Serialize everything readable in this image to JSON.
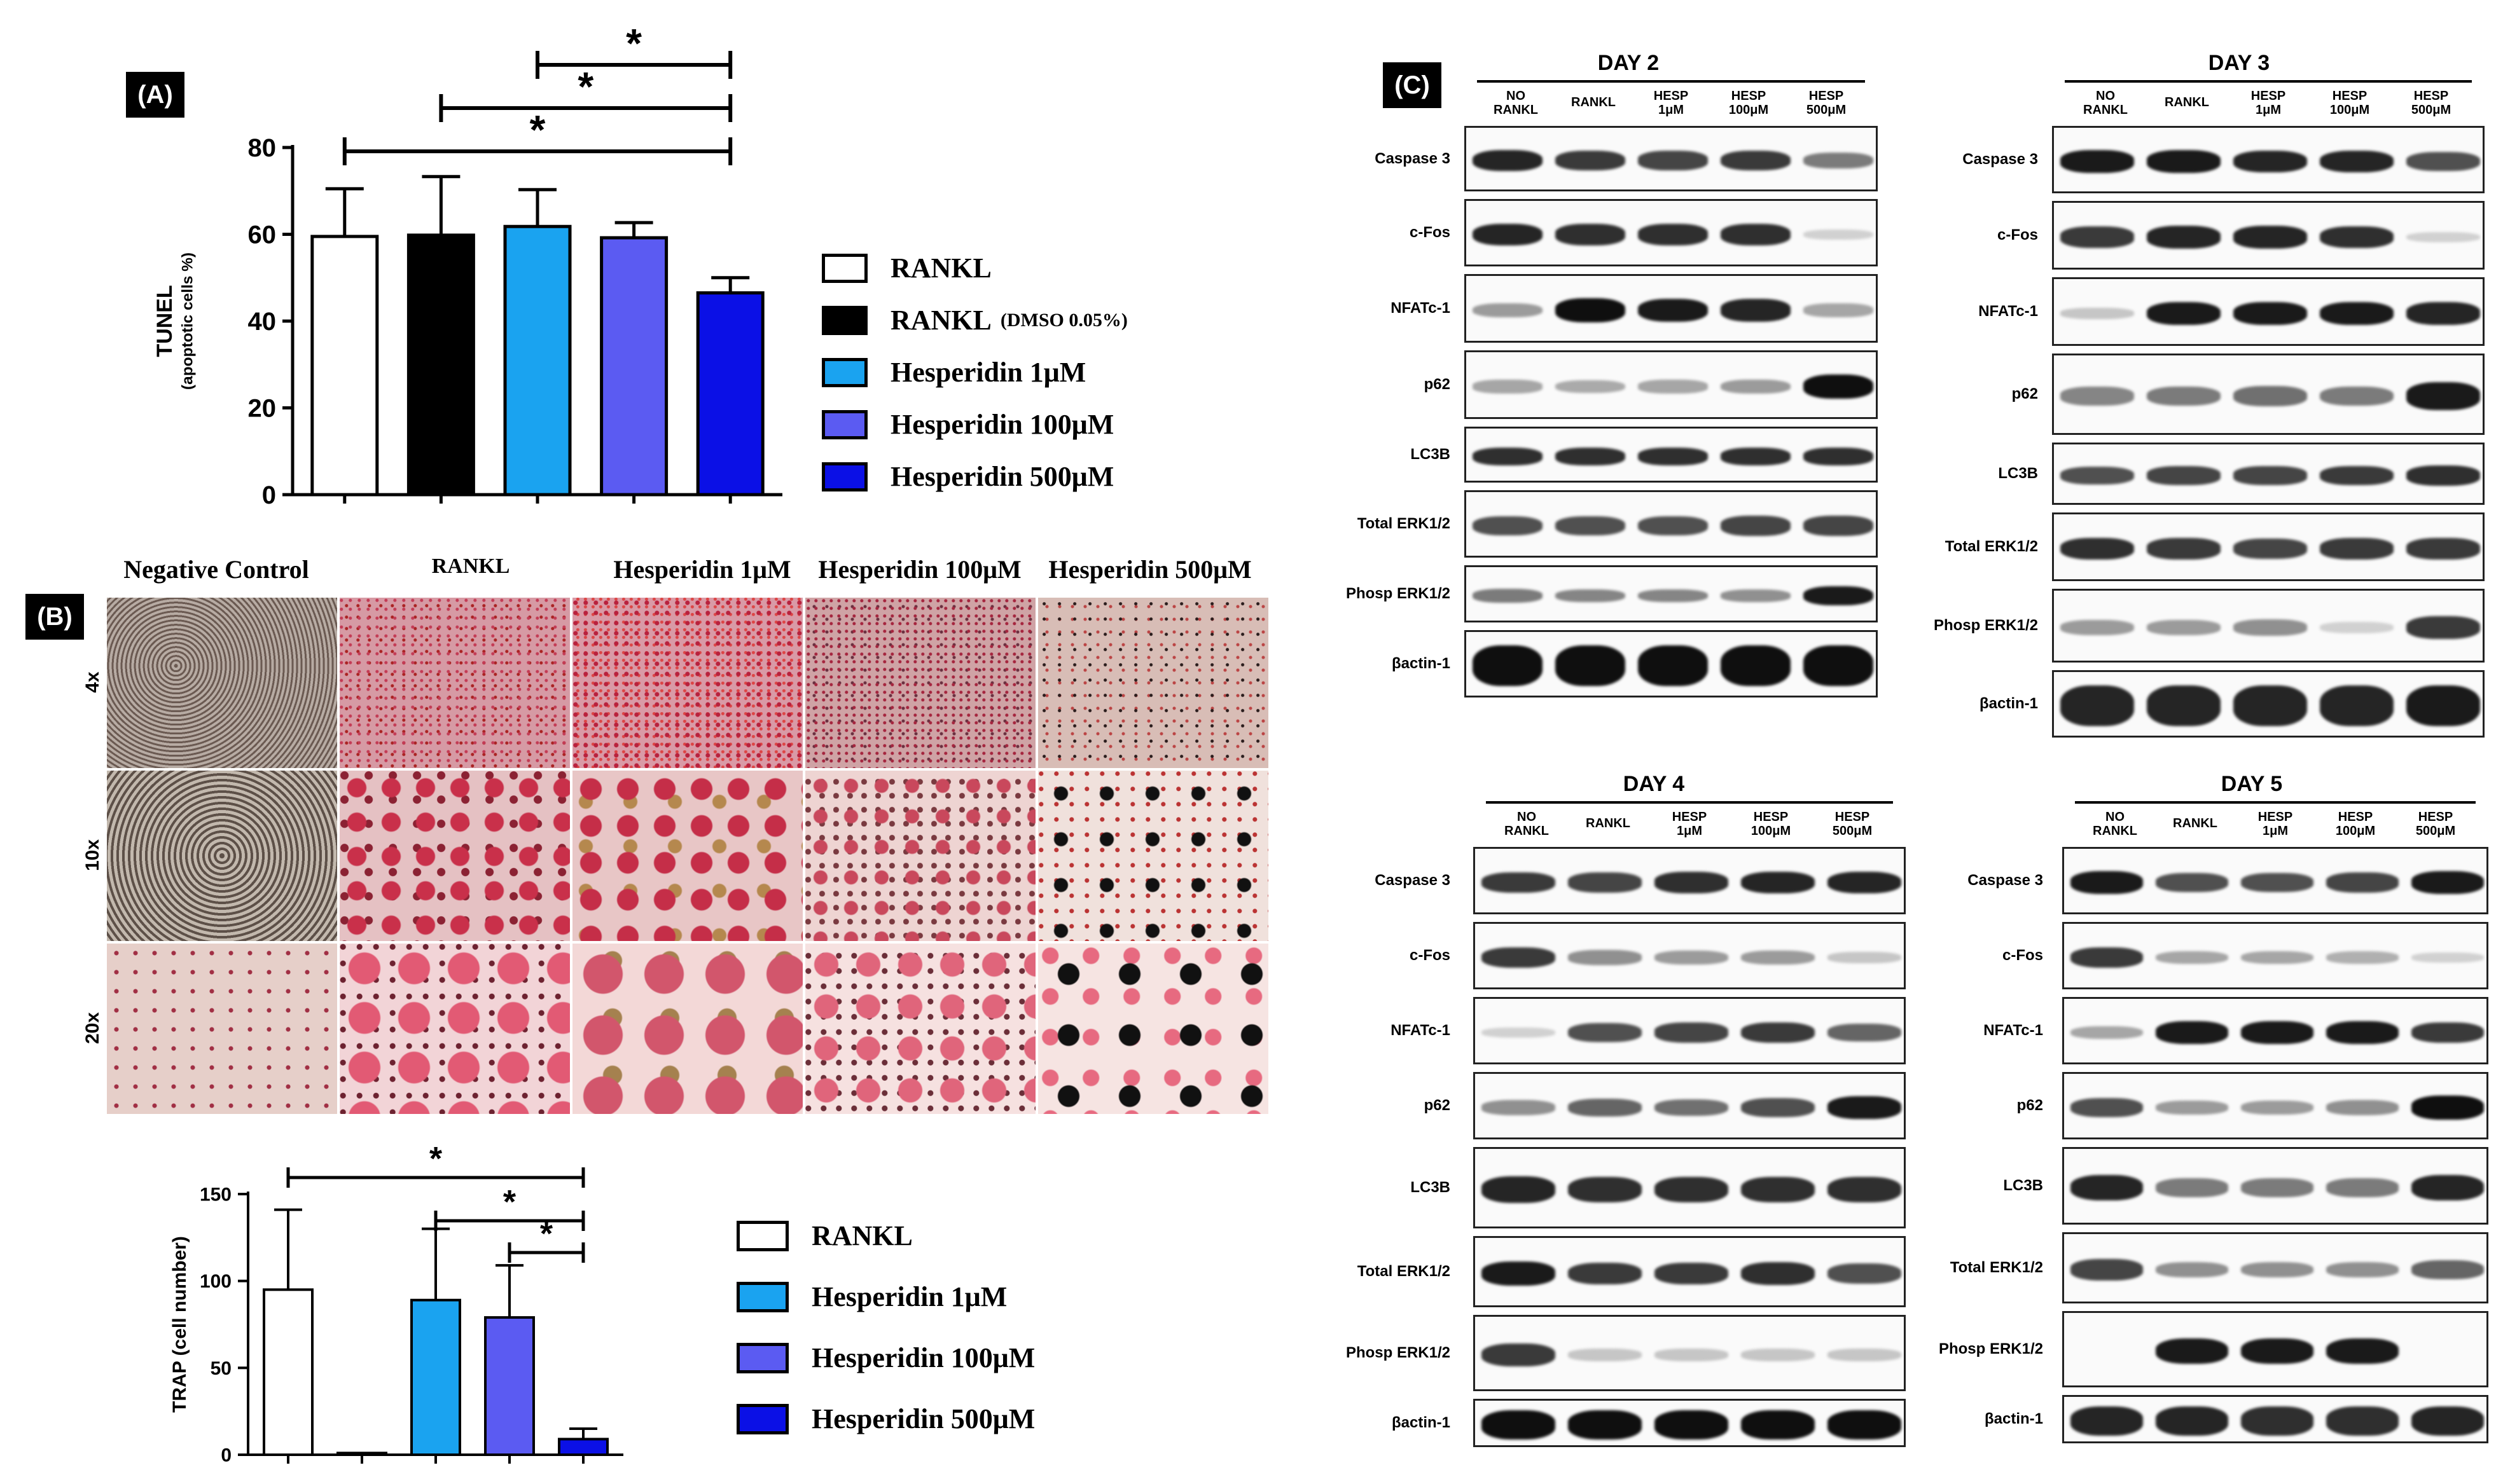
{
  "panels": {
    "A": "(A)",
    "B": "(B)",
    "C": "(C)"
  },
  "tunel_chart": {
    "chart_data": {
      "type": "bar",
      "categories": [
        "RANKL",
        "RANKL (DMSO 0.05%)",
        "Hesperidin 1μM",
        "Hesperidin 100μM",
        "Hesperidin 500μM"
      ],
      "values": [
        59.5,
        59.8,
        61.8,
        59.2,
        46.5
      ],
      "errors": [
        11,
        13.5,
        8.5,
        3.5,
        3.5
      ],
      "colors": [
        "#ffffff",
        "#000000",
        "#1aa3f0",
        "#5b5bf2",
        "#0b10e6"
      ],
      "ylabel": "TUNEL",
      "ylabel_sub": "(apoptotic cells %)",
      "ylim": [
        0,
        80
      ],
      "yticks": [
        "0",
        "20",
        "40",
        "60",
        "80"
      ],
      "significance": [
        {
          "from": 2,
          "to": 4,
          "label": "*"
        },
        {
          "from": 1,
          "to": 4,
          "label": "*"
        },
        {
          "from": 0,
          "to": 4,
          "label": "*"
        }
      ]
    },
    "legend": [
      {
        "label": "RANKL",
        "suffix": "",
        "color": "#ffffff"
      },
      {
        "label": "RANKL",
        "suffix": "(DMSO 0.05%)",
        "color": "#000000"
      },
      {
        "label": "Hesperidin 1μM",
        "suffix": "",
        "color": "#1aa3f0"
      },
      {
        "label": "Hesperidin 100μM",
        "suffix": "",
        "color": "#5b5bf2"
      },
      {
        "label": "Hesperidin 500μM",
        "suffix": "",
        "color": "#0b10e6"
      }
    ]
  },
  "micrographs": {
    "columns": [
      "Negative Control",
      "RANKL",
      "Hesperidin 1μM",
      "Hesperidin 100μM",
      "Hesperidin 500μM"
    ],
    "rows": [
      "4x",
      "10x",
      "20x"
    ]
  },
  "trap_chart": {
    "chart_data": {
      "type": "bar",
      "categories": [
        "RANKL",
        "",
        "Hesperidin 1μM",
        "Hesperidin 100μM",
        "Hesperidin 500μM"
      ],
      "values": [
        95,
        1,
        89,
        79,
        9
      ],
      "errors": [
        46,
        0,
        41,
        30,
        6
      ],
      "colors": [
        "#ffffff",
        "#ffffff",
        "#1aa3f0",
        "#5b5bf2",
        "#0b10e6"
      ],
      "ylabel": "TRAP (cell number)",
      "ylim": [
        0,
        150
      ],
      "yticks": [
        "0",
        "50",
        "100",
        "150"
      ],
      "significance": [
        {
          "from": 0,
          "to": 4,
          "label": "*"
        },
        {
          "from": 2,
          "to": 4,
          "label": "*"
        },
        {
          "from": 3,
          "to": 4,
          "label": "*"
        }
      ]
    },
    "legend": [
      {
        "label": "RANKL",
        "color": "#ffffff"
      },
      {
        "label": "Hesperidin 1μM",
        "color": "#1aa3f0"
      },
      {
        "label": "Hesperidin 100μM",
        "color": "#5b5bf2"
      },
      {
        "label": "Hesperidin 500μM",
        "color": "#0b10e6"
      }
    ]
  },
  "blots": {
    "lanes": [
      [
        "NO",
        "RANKL"
      ],
      [
        "RANKL"
      ],
      [
        "HESP",
        "1μM"
      ],
      [
        "HESP",
        "100μM"
      ],
      [
        "HESP",
        "500μM"
      ]
    ],
    "rows": [
      "Caspase 3",
      "c-Fos",
      "NFATc-1",
      "p62",
      "LC3B",
      "Total ERK1/2",
      "Phosp ERK1/2",
      "βactin-1"
    ],
    "days": [
      "DAY 2",
      "DAY 3",
      "DAY 4",
      "DAY 5"
    ]
  }
}
